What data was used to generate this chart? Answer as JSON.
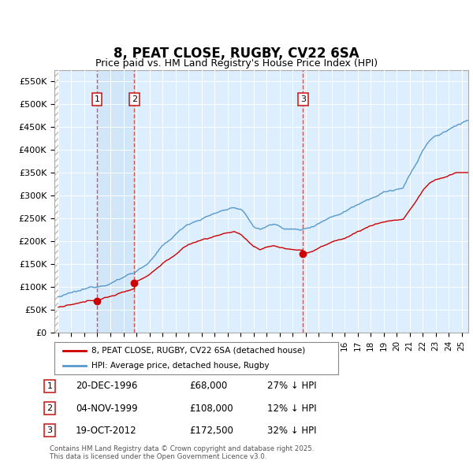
{
  "title": "8, PEAT CLOSE, RUGBY, CV22 6SA",
  "subtitle": "Price paid vs. HM Land Registry's House Price Index (HPI)",
  "ylim": [
    0,
    575000
  ],
  "yticks": [
    0,
    50000,
    100000,
    150000,
    200000,
    250000,
    300000,
    350000,
    400000,
    450000,
    500000,
    550000
  ],
  "ytick_labels": [
    "£0",
    "£50K",
    "£100K",
    "£150K",
    "£200K",
    "£250K",
    "£300K",
    "£350K",
    "£400K",
    "£450K",
    "£500K",
    "£550K"
  ],
  "background_color": "#ffffff",
  "plot_bg_color": "#ddeeff",
  "grid_color": "#ffffff",
  "sale_color": "#cc0000",
  "hpi_color": "#5599cc",
  "vline_color": "#cc4444",
  "shade_between_v1_v2": true,
  "sale_prices": [
    68000,
    108000,
    172500
  ],
  "sale_labels": [
    "1",
    "2",
    "3"
  ],
  "vline_dates": [
    1996.97,
    1999.84,
    2012.8
  ],
  "legend_entries": [
    "8, PEAT CLOSE, RUGBY, CV22 6SA (detached house)",
    "HPI: Average price, detached house, Rugby"
  ],
  "table_rows": [
    {
      "label": "1",
      "date": "20-DEC-1996",
      "price": "£68,000",
      "hpi": "27% ↓ HPI"
    },
    {
      "label": "2",
      "date": "04-NOV-1999",
      "price": "£108,000",
      "hpi": "12% ↓ HPI"
    },
    {
      "label": "3",
      "date": "19-OCT-2012",
      "price": "£172,500",
      "hpi": "32% ↓ HPI"
    }
  ],
  "footnote": "Contains HM Land Registry data © Crown copyright and database right 2025.\nThis data is licensed under the Open Government Licence v3.0.",
  "xmin": 1993.7,
  "xmax": 2025.5
}
